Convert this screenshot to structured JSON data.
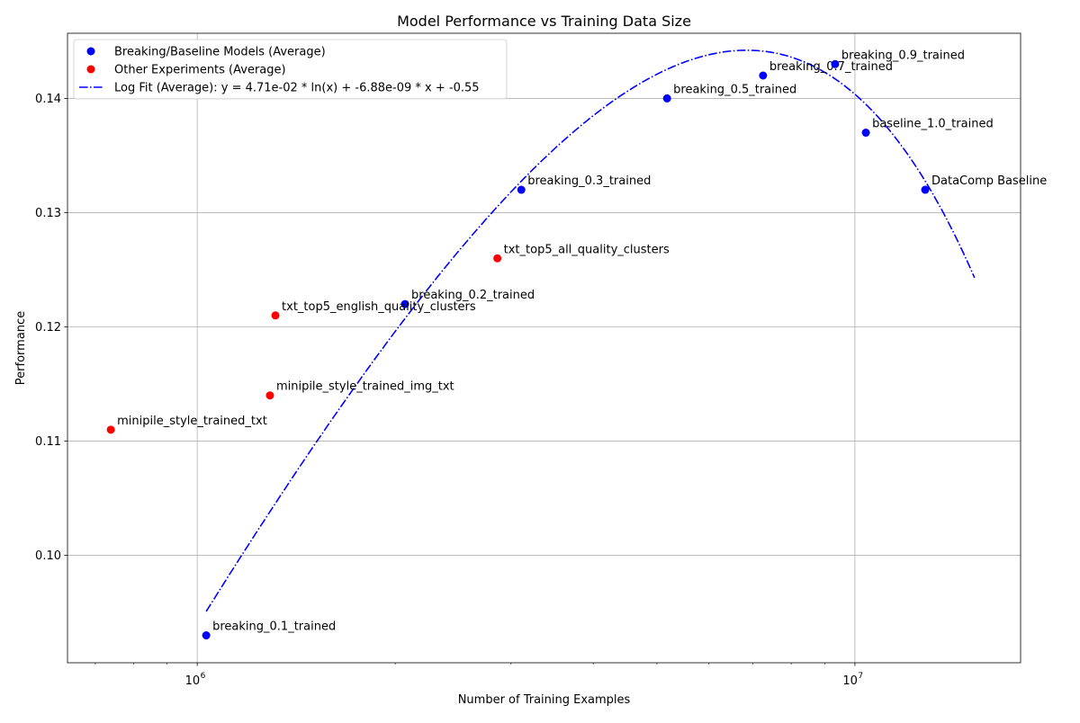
{
  "chart_data": {
    "type": "scatter",
    "title": "Model Performance vs Training Data Size",
    "xlabel": "Number of Training Examples",
    "ylabel": "Performance",
    "xscale": "log",
    "xlim": [
      635000,
      17860000
    ],
    "ylim": [
      0.0906,
      0.1457
    ],
    "grid": true,
    "legend_position": "top-left",
    "x_ticks": [
      {
        "value": 1000000,
        "base": "10",
        "exp": "6"
      },
      {
        "value": 10000000,
        "base": "10",
        "exp": "7"
      }
    ],
    "y_ticks": [
      {
        "value": 0.1,
        "label": "0.10"
      },
      {
        "value": 0.11,
        "label": "0.11"
      },
      {
        "value": 0.12,
        "label": "0.12"
      },
      {
        "value": 0.13,
        "label": "0.13"
      },
      {
        "value": 0.14,
        "label": "0.14"
      }
    ],
    "series": [
      {
        "name": "Breaking/Baseline Models (Average)",
        "color": "#0000ff",
        "points": [
          {
            "label": "breaking_0.1_trained",
            "x": 1032000,
            "y": 0.093
          },
          {
            "label": "breaking_0.2_trained",
            "x": 2070000,
            "y": 0.122
          },
          {
            "label": "breaking_0.3_trained",
            "x": 3110000,
            "y": 0.132
          },
          {
            "label": "breaking_0.5_trained",
            "x": 5180000,
            "y": 0.14
          },
          {
            "label": "breaking_0.7_trained",
            "x": 7250000,
            "y": 0.142
          },
          {
            "label": "breaking_0.9_trained",
            "x": 9330000,
            "y": 0.143
          },
          {
            "label": "baseline_1.0_trained",
            "x": 10390000,
            "y": 0.137
          },
          {
            "label": "DataComp Baseline",
            "x": 12790000,
            "y": 0.132
          }
        ]
      },
      {
        "name": "Other Experiments (Average)",
        "color": "#ff0000",
        "points": [
          {
            "label": "minipile_style_trained_txt",
            "x": 739000,
            "y": 0.111
          },
          {
            "label": "minipile_style_trained_img_txt",
            "x": 1290000,
            "y": 0.114
          },
          {
            "label": "txt_top5_english_quality_clusters",
            "x": 1315000,
            "y": 0.121
          },
          {
            "label": "txt_top5_all_quality_clusters",
            "x": 2860000,
            "y": 0.126
          }
        ]
      }
    ],
    "fit": {
      "name": "Log Fit (Average): y = 4.71e-02 * ln(x) + -6.88e-09 * x + -0.55",
      "color": "#0000ff",
      "style": "dash-dot",
      "a": 0.0471,
      "b": -6.88e-09,
      "c": -0.55,
      "x_range": [
        1032000,
        15200000
      ]
    }
  }
}
